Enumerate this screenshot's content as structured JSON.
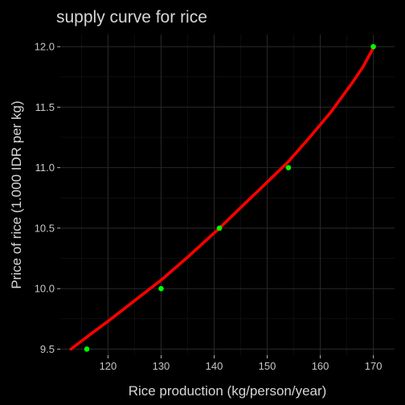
{
  "chart_data": {
    "type": "scatter",
    "title": "supply curve for rice",
    "xlabel": "Rice production (kg/person/year)",
    "ylabel": "Price of rice (1.000 IDR per kg)",
    "xlim": [
      111,
      174
    ],
    "ylim": [
      9.45,
      12.1
    ],
    "x_ticks": [
      120,
      130,
      140,
      150,
      160,
      170
    ],
    "y_ticks": [
      9.5,
      10.0,
      10.5,
      11.0,
      11.5,
      12.0
    ],
    "x_tick_labels": [
      "120",
      "130",
      "140",
      "150",
      "160",
      "170"
    ],
    "y_tick_labels": [
      "9.5",
      "10.0",
      "10.5",
      "11.0",
      "11.5",
      "12.0"
    ],
    "grid": true,
    "series": [
      {
        "type": "scatter",
        "color": "#00ff00",
        "points": [
          {
            "x": 116,
            "y": 9.5
          },
          {
            "x": 130,
            "y": 10.0
          },
          {
            "x": 141,
            "y": 10.5
          },
          {
            "x": 154,
            "y": 11.0
          },
          {
            "x": 170,
            "y": 12.0
          }
        ]
      },
      {
        "type": "line",
        "color": "#ff0000",
        "x": [
          113,
          116,
          120,
          125,
          130,
          135,
          141,
          145,
          150,
          154,
          158,
          162,
          166,
          168,
          170
        ],
        "y": [
          9.5,
          9.6,
          9.73,
          9.9,
          10.07,
          10.26,
          10.5,
          10.67,
          10.88,
          11.05,
          11.25,
          11.46,
          11.7,
          11.83,
          11.99
        ]
      }
    ]
  }
}
